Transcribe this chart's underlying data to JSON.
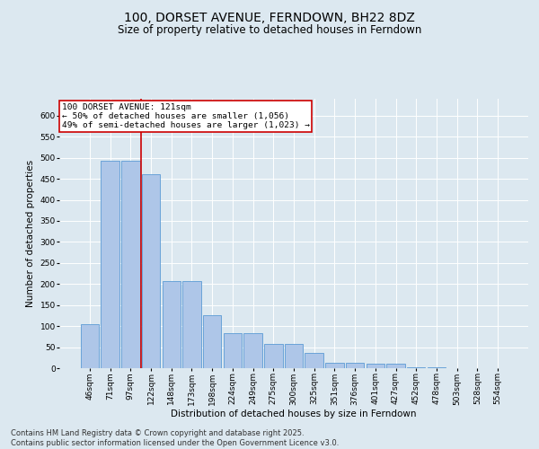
{
  "title": "100, DORSET AVENUE, FERNDOWN, BH22 8DZ",
  "subtitle": "Size of property relative to detached houses in Ferndown",
  "xlabel": "Distribution of detached houses by size in Ferndown",
  "ylabel": "Number of detached properties",
  "categories": [
    "46sqm",
    "71sqm",
    "97sqm",
    "122sqm",
    "148sqm",
    "173sqm",
    "198sqm",
    "224sqm",
    "249sqm",
    "275sqm",
    "300sqm",
    "325sqm",
    "351sqm",
    "376sqm",
    "401sqm",
    "427sqm",
    "452sqm",
    "478sqm",
    "503sqm",
    "528sqm",
    "554sqm"
  ],
  "values": [
    105,
    492,
    492,
    460,
    207,
    207,
    125,
    83,
    83,
    58,
    58,
    37,
    13,
    13,
    10,
    10,
    2,
    2,
    0,
    0,
    0
  ],
  "bar_color": "#aec6e8",
  "bar_edge_color": "#5b9bd5",
  "vline_x_index": 3,
  "vline_color": "#cc0000",
  "annotation_text": "100 DORSET AVENUE: 121sqm\n← 50% of detached houses are smaller (1,056)\n49% of semi-detached houses are larger (1,023) →",
  "annotation_box_color": "#cc0000",
  "ylim": [
    0,
    640
  ],
  "yticks": [
    0,
    50,
    100,
    150,
    200,
    250,
    300,
    350,
    400,
    450,
    500,
    550,
    600
  ],
  "background_color": "#dce8f0",
  "plot_bg_color": "#dce8f0",
  "footer": "Contains HM Land Registry data © Crown copyright and database right 2025.\nContains public sector information licensed under the Open Government Licence v3.0.",
  "title_fontsize": 10,
  "subtitle_fontsize": 8.5,
  "axis_label_fontsize": 7.5,
  "tick_fontsize": 6.5,
  "footer_fontsize": 6,
  "ann_fontsize": 6.8
}
